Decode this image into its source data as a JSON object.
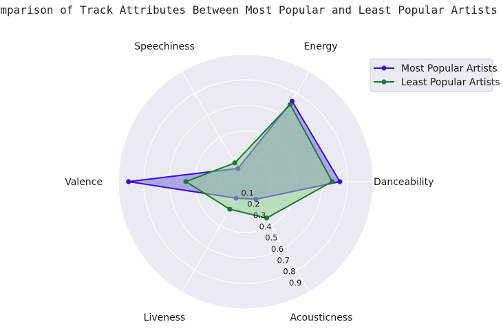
{
  "chart_data": {
    "type": "radar",
    "title": "Comparison of Track Attributes Between Most Popular and Least Popular Artists",
    "axes": [
      "Danceability",
      "Energy",
      "Speechiness",
      "Valence",
      "Liveness",
      "Acousticness"
    ],
    "radial_ticks": [
      "0.1",
      "0.2",
      "0.3",
      "0.4",
      "0.5",
      "0.6",
      "0.7",
      "0.8",
      "0.9"
    ],
    "rlim": [
      0,
      1.0
    ],
    "grid": true,
    "legend_position": "upper-right-outside",
    "series": [
      {
        "name": "Most Popular Artists",
        "color": "#3a0bdc",
        "fill": "#7a6cdc",
        "values": [
          0.74,
          0.73,
          0.12,
          0.92,
          0.15,
          0.16
        ]
      },
      {
        "name": "Least Popular Artists",
        "color": "#1a7a2a",
        "fill": "#8fcf8f",
        "values": [
          0.68,
          0.7,
          0.17,
          0.47,
          0.25,
          0.33
        ]
      }
    ]
  }
}
